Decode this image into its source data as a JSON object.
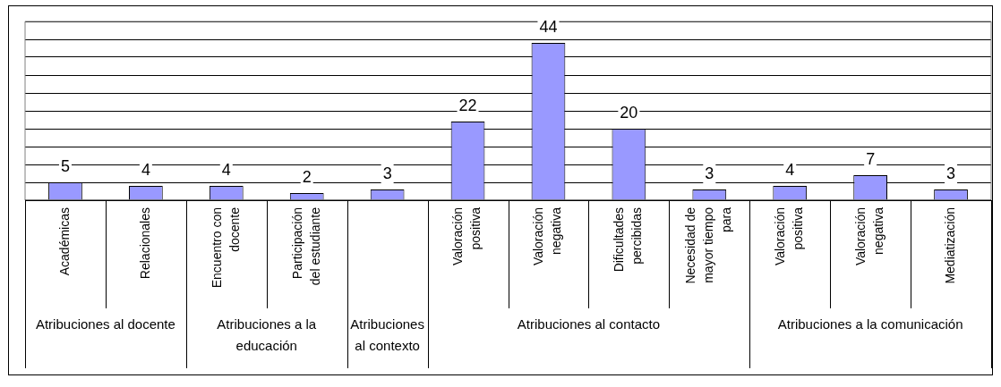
{
  "chart_data": {
    "type": "bar",
    "categories": [
      "Académicas",
      "Relacionales",
      "Encuentro con docente",
      "Participación del estudiante",
      null,
      "Valoración positiva",
      "Valoración negativa",
      "Dificultades percibidas",
      "Necesidad de mayor tiempo para",
      "Valoración positiva",
      "Valoración negativa",
      "Mediatización"
    ],
    "values": [
      5,
      4,
      4,
      2,
      3,
      22,
      44,
      20,
      3,
      4,
      7,
      3
    ],
    "color": "#9999ff",
    "ylim": [
      0,
      50
    ],
    "yticks": [
      {
        "value": 0,
        "label": null
      },
      {
        "value": 5,
        "label": null
      },
      {
        "value": 10,
        "label": null
      },
      {
        "value": 15,
        "label": null
      },
      {
        "value": 20,
        "label": null
      },
      {
        "value": 25,
        "label": null
      },
      {
        "value": 30,
        "label": null
      },
      {
        "value": 35,
        "label": null
      },
      {
        "value": 40,
        "label": null
      },
      {
        "value": 45,
        "label": null
      },
      {
        "value": 50,
        "label": null
      }
    ],
    "grid": "y",
    "data_labels": true,
    "tick_labels": "x",
    "annotations": [
      "Atribuciones al docente",
      "Atribuciones a la educación",
      "Atribuciones al contexto",
      "Atribuciones al contacto",
      "Atribuciones a la comunicación"
    ]
  }
}
